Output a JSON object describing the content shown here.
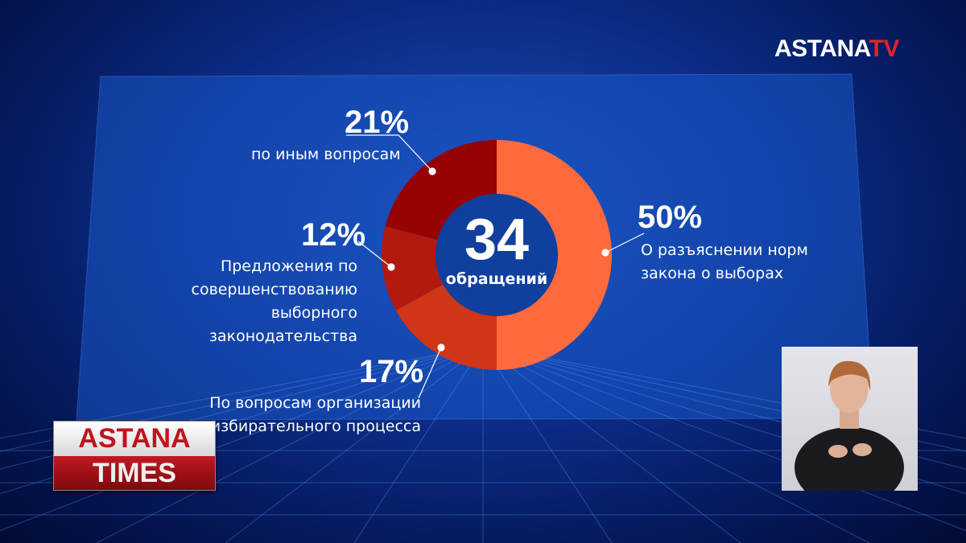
{
  "channel_logo": {
    "main": "ASTANA",
    "suffix": "TV"
  },
  "show_logo": {
    "line1": "ASTANA",
    "line2": "TIMES"
  },
  "chart_data": {
    "type": "pie",
    "style": "donut",
    "center_value": "34",
    "center_label": "обращений",
    "slices": [
      {
        "value": 50,
        "label": "50%",
        "name": "О разъяснении норм закона  о выборах",
        "color": "#ff6a3d"
      },
      {
        "value": 17,
        "label": "17%",
        "name": "По вопросам организации избирательного процесса",
        "color": "#cf3516"
      },
      {
        "value": 12,
        "label": "12%",
        "name": "Предложения по совершенствованию выборного законодательства",
        "color": "#b2190f"
      },
      {
        "value": 21,
        "label": "21%",
        "name": "по иным вопросам",
        "color": "#970202"
      }
    ],
    "label_lines": {
      "s0": [
        "О разъяснении норм",
        "закона  о выборах"
      ],
      "s1": [
        "По вопросам организации",
        "избирательного процесса"
      ],
      "s2": [
        "Предложения по",
        "совершенствованию",
        "выборного законодательства"
      ],
      "s3": [
        "по иным вопросам"
      ]
    }
  }
}
